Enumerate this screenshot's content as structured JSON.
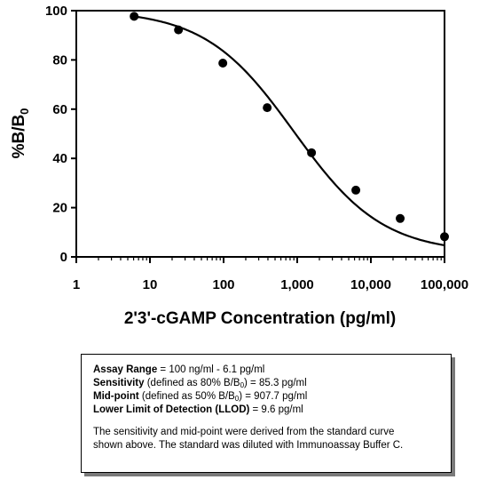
{
  "chart_data": {
    "type": "scatter",
    "xscale": "log",
    "xlim": [
      1,
      100000
    ],
    "ylim": [
      0,
      100
    ],
    "xticks": [
      1,
      10,
      100,
      1000,
      10000,
      100000
    ],
    "xtick_labels": [
      "1",
      "10",
      "100",
      "1,000",
      "10,000",
      "100,000"
    ],
    "yticks": [
      0,
      20,
      40,
      60,
      80,
      100
    ],
    "ytick_labels": [
      "0",
      "20",
      "40",
      "60",
      "80",
      "100"
    ],
    "xlabel": "2'3'-cGAMP Concentration (pg/ml)",
    "ylabel_main": "%B/B",
    "ylabel_sub": "0",
    "grid": false,
    "legend": "none",
    "fit_curve": true,
    "points": [
      {
        "x": 6.1,
        "y": 97.7
      },
      {
        "x": 24.4,
        "y": 92.2
      },
      {
        "x": 97.7,
        "y": 78.7
      },
      {
        "x": 391,
        "y": 60.6
      },
      {
        "x": 1563,
        "y": 42.3
      },
      {
        "x": 6250,
        "y": 27.1
      },
      {
        "x": 25000,
        "y": 15.6
      },
      {
        "x": 100000,
        "y": 8.2
      }
    ]
  },
  "info": {
    "assay_range_label": "Assay Range",
    "assay_range_value": " = 100 ng/ml - 6.1 pg/ml",
    "sensitivity_label": "Sensitivity",
    "sensitivity_def": " (defined as 80% B/B",
    "sensitivity_sub": "0",
    "sensitivity_value": ") = 85.3 pg/ml",
    "midpoint_label": "Mid-point",
    "midpoint_def": " (defined as 50% B/B",
    "midpoint_sub": "0",
    "midpoint_value": ") = 907.7 pg/ml",
    "llod_label": "Lower Limit of Detection (LLOD)",
    "llod_value": " = 9.6 pg/ml",
    "note_line1": "The sensitivity and mid-point were derived from the standard curve",
    "note_line2": "shown above. The standard was diluted with Immunoassay Buffer C."
  }
}
